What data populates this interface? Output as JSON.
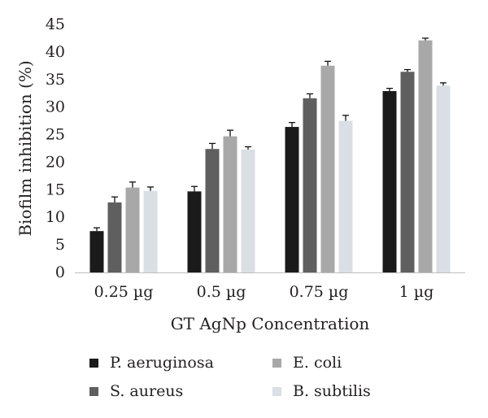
{
  "chart_data": {
    "type": "bar",
    "title": "",
    "xlabel": "GT AgNp Concentration",
    "ylabel": "Biofilm inhibition (%)",
    "ylim": [
      0,
      45
    ],
    "yticks": [
      0,
      5,
      10,
      15,
      20,
      25,
      30,
      35,
      40,
      45
    ],
    "categories": [
      "0.25 µg",
      "0.5 µg",
      "0.75 µg",
      "1 µg"
    ],
    "series": [
      {
        "name": "P. aeruginosa",
        "color": "#1a1a1a",
        "values": [
          7.5,
          14.7,
          26.4,
          32.9
        ],
        "errors": [
          0.6,
          0.9,
          0.8,
          0.5
        ]
      },
      {
        "name": "S. aureus",
        "color": "#5f5f5f",
        "values": [
          12.7,
          22.4,
          31.6,
          36.4
        ],
        "errors": [
          1.0,
          1.0,
          0.8,
          0.4
        ]
      },
      {
        "name": "E. coli",
        "color": "#a9a8a8",
        "values": [
          15.4,
          24.7,
          37.5,
          42.1
        ],
        "errors": [
          1.0,
          1.1,
          0.8,
          0.4
        ]
      },
      {
        "name": "B. subtilis",
        "color": "#dadfe6",
        "values": [
          14.8,
          22.3,
          27.5,
          33.9
        ],
        "errors": [
          0.7,
          0.5,
          1.0,
          0.5
        ]
      }
    ],
    "grid": false,
    "legend_position": "bottom"
  }
}
